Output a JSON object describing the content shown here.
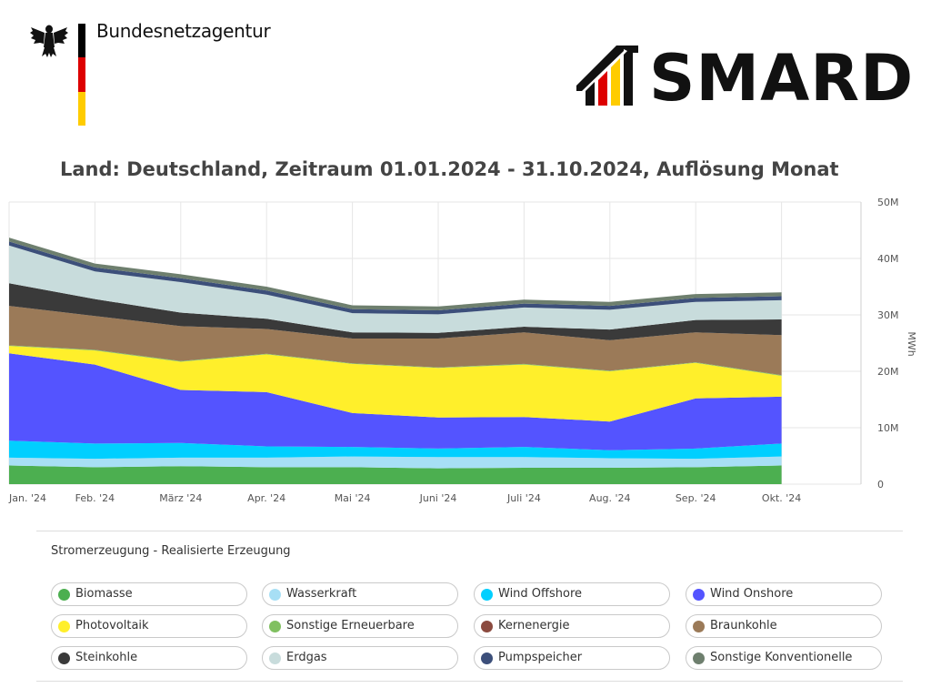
{
  "header": {
    "agency_name": "Bundesnetzagentur",
    "smard_logo_text": "SMARD"
  },
  "chart": {
    "title": "Land: Deutschland, Zeitraum 01.01.2024 - 31.10.2024, Auflösung Monat",
    "legend_title": "Stromerzeugung - Realisierte Erzeugung"
  },
  "colors": {
    "flag_black": "#000000",
    "flag_red": "#dd0000",
    "flag_gold": "#ffcc00",
    "grid": "#e6e6e6"
  },
  "chart_data": {
    "type": "area",
    "stacked": true,
    "title": "Land: Deutschland, Zeitraum 01.01.2024 - 31.10.2024, Auflösung Monat",
    "xlabel": "",
    "ylabel": "MWh",
    "categories": [
      "Jan. '24",
      "Feb. '24",
      "März '24",
      "Apr. '24",
      "Mai '24",
      "Juni '24",
      "Juli '24",
      "Aug. '24",
      "Sep. '24",
      "Okt. '24"
    ],
    "y_ticks": [
      "0",
      "10M",
      "20M",
      "30M",
      "40M",
      "50M"
    ],
    "ylim": [
      0,
      50000000
    ],
    "series": [
      {
        "name": "Biomasse",
        "color": "#4caf50",
        "values": [
          3300000,
          3000000,
          3200000,
          3000000,
          3000000,
          2800000,
          2900000,
          2900000,
          3000000,
          3300000
        ]
      },
      {
        "name": "Wasserkraft",
        "color": "#a7dff5",
        "values": [
          1400000,
          1500000,
          1500000,
          1700000,
          1900000,
          2000000,
          1900000,
          1700000,
          1500000,
          1600000
        ]
      },
      {
        "name": "Wind Offshore",
        "color": "#00cfff",
        "values": [
          3000000,
          2700000,
          2600000,
          2000000,
          1700000,
          1500000,
          1800000,
          1400000,
          1800000,
          2300000
        ]
      },
      {
        "name": "Wind Onshore",
        "color": "#5454ff",
        "values": [
          15500000,
          14000000,
          9400000,
          9600000,
          6000000,
          5500000,
          5300000,
          5100000,
          8900000,
          8300000
        ]
      },
      {
        "name": "Photovoltaik",
        "color": "#ffef2b",
        "values": [
          1300000,
          2500000,
          5000000,
          6700000,
          8700000,
          8800000,
          9300000,
          8900000,
          6300000,
          3700000
        ]
      },
      {
        "name": "Sonstige Erneuerbare",
        "color": "#80c060",
        "values": [
          100000,
          100000,
          100000,
          100000,
          100000,
          100000,
          100000,
          100000,
          100000,
          100000
        ]
      },
      {
        "name": "Kernenergie",
        "color": "#8b4a3f",
        "values": [
          0,
          0,
          0,
          0,
          0,
          0,
          0,
          0,
          0,
          0
        ]
      },
      {
        "name": "Braunkohle",
        "color": "#9b7a58",
        "values": [
          7000000,
          6000000,
          6200000,
          4400000,
          4400000,
          5100000,
          5600000,
          5400000,
          5300000,
          7100000
        ]
      },
      {
        "name": "Steinkohle",
        "color": "#3a3a3a",
        "values": [
          4000000,
          3000000,
          2400000,
          1800000,
          1100000,
          1000000,
          1000000,
          1900000,
          2200000,
          2800000
        ]
      },
      {
        "name": "Erdgas",
        "color": "#c8dcdc",
        "values": [
          6700000,
          4900000,
          5400000,
          4300000,
          3400000,
          3300000,
          3400000,
          3500000,
          3200000,
          3400000
        ]
      },
      {
        "name": "Pumpspeicher",
        "color": "#3c4f7a",
        "values": [
          700000,
          700000,
          700000,
          700000,
          700000,
          700000,
          700000,
          700000,
          700000,
          700000
        ]
      },
      {
        "name": "Sonstige Konventionelle",
        "color": "#6e7f6e",
        "values": [
          700000,
          700000,
          700000,
          700000,
          700000,
          700000,
          700000,
          700000,
          700000,
          700000
        ]
      }
    ]
  }
}
